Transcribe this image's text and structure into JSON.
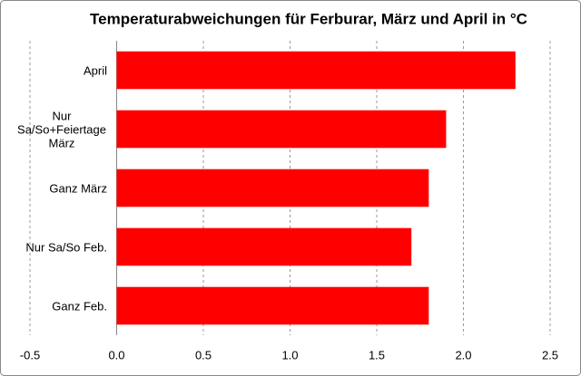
{
  "chart_data": {
    "type": "bar",
    "orientation": "horizontal",
    "title": "Temperaturabweichungen für Ferburar, März und April in °C",
    "categories": [
      "April",
      "Nur Sa/So+Feiertage März",
      "Ganz März",
      "Nur Sa/So Feb.",
      "Ganz Feb."
    ],
    "values": [
      2.3,
      1.9,
      1.8,
      1.7,
      1.8
    ],
    "color": "#ff0000",
    "xlim": [
      -0.5,
      2.5
    ],
    "xticks": [
      {
        "value": -0.5,
        "label": "-0.5"
      },
      {
        "value": 0,
        "label": "0.0"
      },
      {
        "value": 0.5,
        "label": "0.5"
      },
      {
        "value": 1,
        "label": "1.0"
      },
      {
        "value": 1.5,
        "label": "1.5"
      },
      {
        "value": 2,
        "label": "2.0"
      },
      {
        "value": 2.5,
        "label": "2.5"
      }
    ],
    "grid": true
  }
}
